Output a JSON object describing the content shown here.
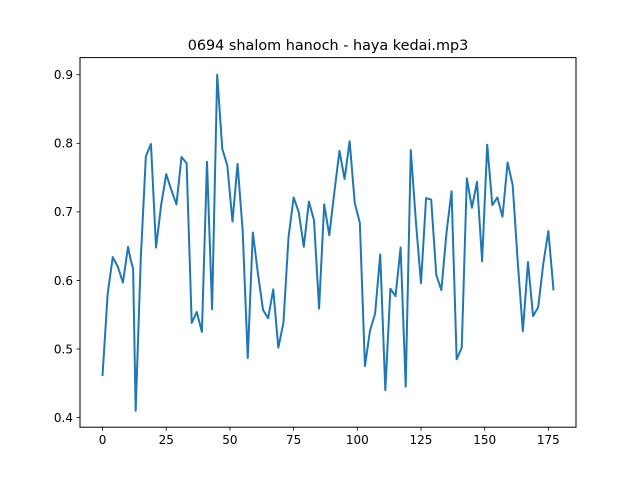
{
  "chart_data": {
    "type": "line",
    "title": "0694 shalom hanoch - haya kedai.mp3",
    "xlabel": "",
    "ylabel": "",
    "xlim": [
      -8.85,
      185.85
    ],
    "ylim": [
      0.386,
      0.925
    ],
    "xticks": [
      0,
      25,
      50,
      75,
      100,
      125,
      150,
      175
    ],
    "yticks": [
      0.4,
      0.5,
      0.6,
      0.7,
      0.8,
      0.9
    ],
    "ytick_labels": [
      "0.4",
      "0.5",
      "0.6",
      "0.7",
      "0.8",
      "0.9"
    ],
    "grid": false,
    "series": [
      {
        "color": "#1f77b4",
        "x": [
          0,
          2,
          4,
          6,
          8,
          10,
          11,
          12,
          13,
          15,
          17,
          19,
          21,
          23,
          25,
          27,
          29,
          31,
          33,
          35,
          37,
          39,
          41,
          43,
          45,
          47,
          49,
          51,
          53,
          55,
          57,
          59,
          61,
          63,
          65,
          67,
          69,
          71,
          73,
          75,
          77,
          79,
          81,
          83,
          85,
          87,
          89,
          91,
          93,
          95,
          97,
          99,
          101,
          103,
          105,
          107,
          109,
          111,
          113,
          115,
          117,
          119,
          121,
          123,
          125,
          127,
          129,
          131,
          133,
          135,
          137,
          139,
          141,
          143,
          145,
          147,
          149,
          151,
          153,
          155,
          157,
          159,
          161,
          163,
          165,
          167,
          169,
          171,
          173,
          175,
          177
        ],
        "y": [
          0.462,
          0.58,
          0.634,
          0.62,
          0.597,
          0.649,
          0.631,
          0.617,
          0.41,
          0.631,
          0.781,
          0.799,
          0.648,
          0.71,
          0.755,
          0.732,
          0.711,
          0.78,
          0.771,
          0.538,
          0.554,
          0.525,
          0.773,
          0.558,
          0.9,
          0.792,
          0.767,
          0.686,
          0.77,
          0.673,
          0.487,
          0.67,
          0.61,
          0.557,
          0.545,
          0.587,
          0.502,
          0.538,
          0.663,
          0.721,
          0.7,
          0.649,
          0.715,
          0.688,
          0.559,
          0.711,
          0.666,
          0.729,
          0.789,
          0.748,
          0.803,
          0.713,
          0.684,
          0.475,
          0.527,
          0.552,
          0.638,
          0.44,
          0.588,
          0.577,
          0.648,
          0.445,
          0.79,
          0.686,
          0.596,
          0.72,
          0.718,
          0.608,
          0.586,
          0.669,
          0.73,
          0.485,
          0.502,
          0.749,
          0.706,
          0.744,
          0.628,
          0.798,
          0.71,
          0.721,
          0.693,
          0.772,
          0.739,
          0.626,
          0.526,
          0.627,
          0.548,
          0.561,
          0.624,
          0.672,
          0.587
        ]
      }
    ]
  }
}
